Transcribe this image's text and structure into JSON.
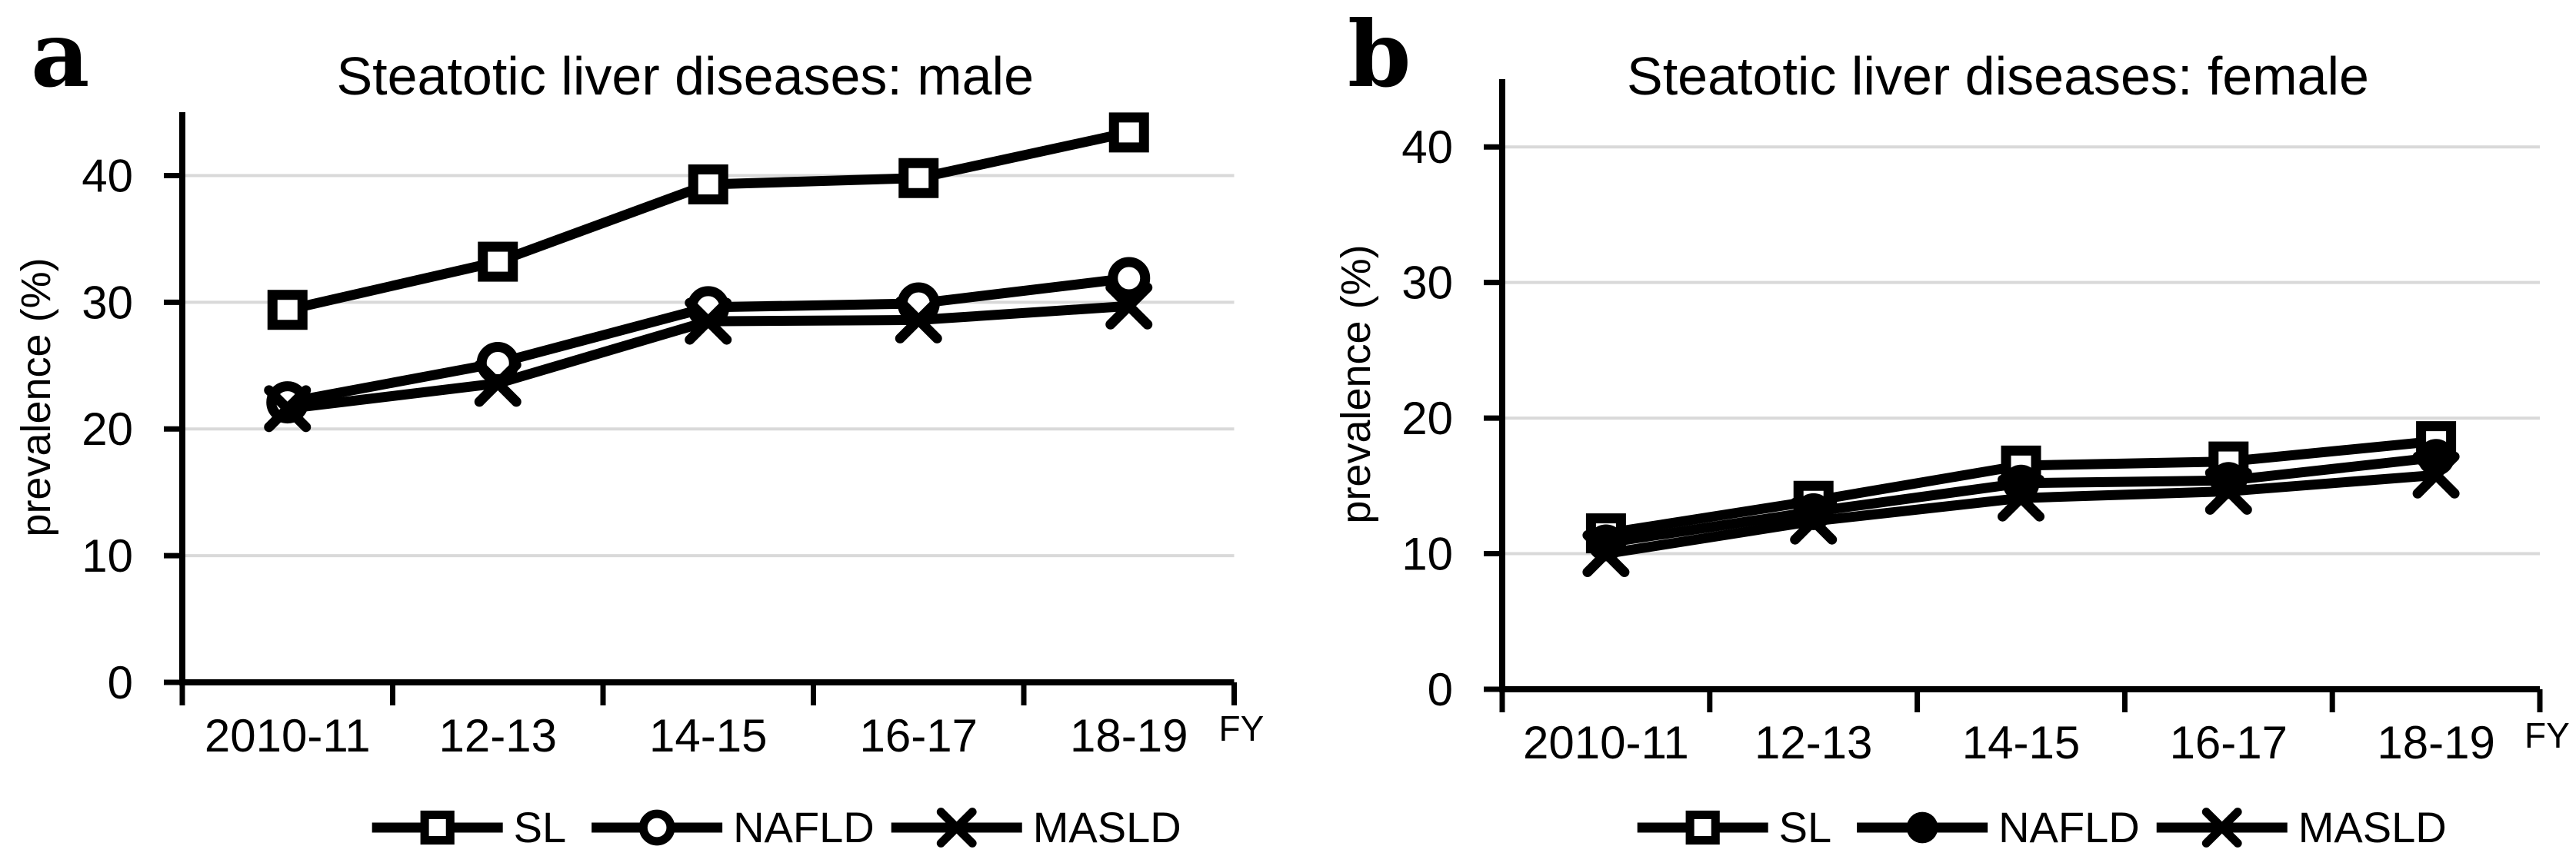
{
  "colors": {
    "background": "#ffffff",
    "line": "#000000",
    "gridline": "#d9d9d9",
    "text": "#000000"
  },
  "chart_data": [
    {
      "type": "line",
      "panel_letter": "a",
      "title": "Steatotic liver diseases: male",
      "ylabel": "prevalence (%)",
      "x_axis_note": "FY",
      "categories": [
        "2010-11",
        "12-13",
        "14-15",
        "16-17",
        "18-19"
      ],
      "yticks": [
        0,
        10,
        20,
        30,
        40
      ],
      "ylim": [
        0,
        45
      ],
      "grid": "horizontal-only",
      "legend_position": "bottom",
      "series": [
        {
          "name": "SL",
          "marker": "open-square",
          "values": [
            29.4,
            33.2,
            39.3,
            39.8,
            43.4
          ]
        },
        {
          "name": "NAFLD",
          "marker": "open-circle",
          "values": [
            22.1,
            25.2,
            29.6,
            29.9,
            31.9
          ]
        },
        {
          "name": "MASLD",
          "marker": "x-cross",
          "values": [
            21.6,
            23.6,
            28.5,
            28.6,
            29.7
          ]
        }
      ]
    },
    {
      "type": "line",
      "panel_letter": "b",
      "title": "Steatotic liver diseases: female",
      "ylabel": "prevalence (%)",
      "x_axis_note": "FY",
      "categories": [
        "2010-11",
        "12-13",
        "14-15",
        "16-17",
        "18-19"
      ],
      "yticks": [
        0,
        10,
        20,
        30,
        40
      ],
      "ylim": [
        0,
        45
      ],
      "grid": "horizontal-only",
      "legend_position": "bottom",
      "series": [
        {
          "name": "SL",
          "marker": "open-square",
          "values": [
            11.5,
            13.9,
            16.5,
            16.8,
            18.3
          ]
        },
        {
          "name": "NAFLD",
          "marker": "filled-circle",
          "values": [
            10.8,
            13.1,
            15.2,
            15.4,
            17.1
          ]
        },
        {
          "name": "MASLD",
          "marker": "x-cross",
          "values": [
            10.0,
            12.4,
            14.1,
            14.6,
            15.8
          ]
        }
      ]
    }
  ]
}
